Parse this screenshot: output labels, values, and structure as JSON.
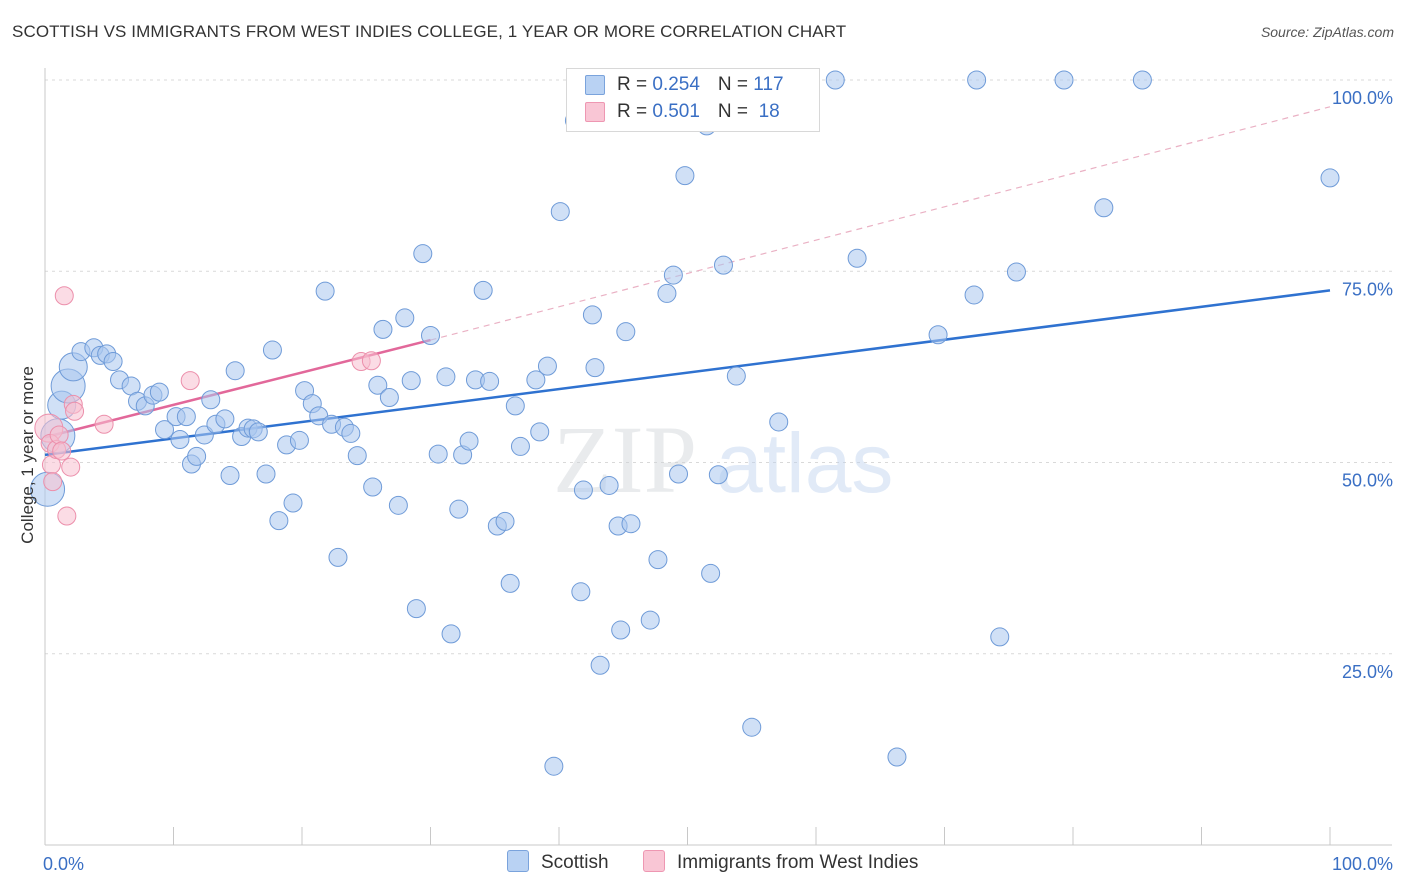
{
  "title": "SCOTTISH VS IMMIGRANTS FROM WEST INDIES COLLEGE, 1 YEAR OR MORE CORRELATION CHART",
  "source": "Source: ZipAtlas.com",
  "watermark": {
    "zip": "ZIP",
    "atlas": "atlas"
  },
  "legend": {
    "r_label": "R = ",
    "n_label": "N = ",
    "series": [
      {
        "name": "Scottish",
        "r": "0.254",
        "n": "117"
      },
      {
        "name": "Immigrants from West Indies",
        "r": "0.501",
        "n": " 18"
      }
    ]
  },
  "chart_data": {
    "type": "scatter",
    "title": "SCOTTISH VS IMMIGRANTS FROM WEST INDIES COLLEGE, 1 YEAR OR MORE CORRELATION CHART",
    "xlabel": "",
    "ylabel": "College, 1 year or more",
    "xlim": [
      0,
      100
    ],
    "ylim": [
      0,
      100
    ],
    "x_tick_labels": [
      "0.0%",
      "100.0%"
    ],
    "y_tick_labels": [
      {
        "value": 100,
        "label": "100.0%"
      },
      {
        "value": 75,
        "label": "75.0%"
      },
      {
        "value": 50,
        "label": "50.0%"
      },
      {
        "value": 25,
        "label": "25.0%"
      }
    ],
    "colors": {
      "Scottish": "#a9c6ef",
      "Scottish_edge": "#6f9bd8",
      "Scottish_line": "#2f72d0",
      "West Indies": "#f7bfd0",
      "West Indies_edge": "#ec8fab",
      "West Indies_line": "#e2689a"
    },
    "series": [
      {
        "name": "Scottish",
        "trend": {
          "x": [
            0,
            100
          ],
          "y": [
            51.0,
            72.5
          ]
        },
        "points": [
          [
            0.2,
            46.5,
            3
          ],
          [
            1,
            53.5,
            3
          ],
          [
            1.3,
            57.5,
            2
          ],
          [
            1.8,
            60,
            3
          ],
          [
            2.2,
            62.5,
            2
          ],
          [
            2.8,
            64.5,
            1
          ],
          [
            3.8,
            65,
            1
          ],
          [
            4.3,
            64,
            1
          ],
          [
            4.8,
            64.2,
            1
          ],
          [
            5.3,
            63.2,
            1
          ],
          [
            5.8,
            60.8,
            1
          ],
          [
            6.7,
            60,
            1
          ],
          [
            7.2,
            58,
            1
          ],
          [
            7.8,
            57.4,
            1
          ],
          [
            8.4,
            58.8,
            1
          ],
          [
            8.9,
            59.2,
            1
          ],
          [
            9.3,
            54.3,
            1
          ],
          [
            10.2,
            56,
            1
          ],
          [
            10.5,
            53,
            1
          ],
          [
            11,
            56,
            1
          ],
          [
            11.4,
            49.8,
            1
          ],
          [
            11.8,
            50.8,
            1
          ],
          [
            12.4,
            53.6,
            1
          ],
          [
            12.9,
            58.2,
            1
          ],
          [
            13.3,
            55,
            1
          ],
          [
            14.0,
            55.7,
            1
          ],
          [
            14.4,
            48.3,
            1
          ],
          [
            14.8,
            62,
            1
          ],
          [
            15.3,
            53.4,
            1
          ],
          [
            15.8,
            54.5,
            1
          ],
          [
            16.2,
            54.4,
            1
          ],
          [
            16.6,
            54,
            1
          ],
          [
            17.2,
            48.5,
            1
          ],
          [
            17.7,
            64.7,
            1
          ],
          [
            18.2,
            42.4,
            1
          ],
          [
            18.8,
            52.3,
            1
          ],
          [
            19.3,
            44.7,
            1
          ],
          [
            19.8,
            52.9,
            1
          ],
          [
            20.2,
            59.4,
            1
          ],
          [
            20.8,
            57.7,
            1
          ],
          [
            21.3,
            56.1,
            1
          ],
          [
            21.8,
            72.4,
            1
          ],
          [
            22.3,
            55,
            1
          ],
          [
            22.8,
            37.6,
            1
          ],
          [
            23.3,
            54.6,
            1
          ],
          [
            23.8,
            53.8,
            1
          ],
          [
            24.3,
            50.9,
            1
          ],
          [
            25.5,
            46.8,
            1
          ],
          [
            25.9,
            60.1,
            1
          ],
          [
            26.3,
            67.4,
            1
          ],
          [
            26.8,
            58.5,
            1
          ],
          [
            27.5,
            44.4,
            1
          ],
          [
            28,
            68.9,
            1
          ],
          [
            28.5,
            60.7,
            1
          ],
          [
            28.9,
            30.9,
            1
          ],
          [
            29.4,
            77.3,
            1
          ],
          [
            30,
            66.6,
            1
          ],
          [
            30.6,
            51.1,
            1
          ],
          [
            31.2,
            61.2,
            1
          ],
          [
            31.6,
            27.6,
            1
          ],
          [
            32.2,
            43.9,
            1
          ],
          [
            32.5,
            51,
            1
          ],
          [
            33.0,
            52.8,
            1
          ],
          [
            33.5,
            60.8,
            1
          ],
          [
            34.1,
            72.5,
            1
          ],
          [
            34.6,
            60.6,
            1
          ],
          [
            35.2,
            41.7,
            1
          ],
          [
            35.8,
            42.3,
            1
          ],
          [
            36.2,
            34.2,
            1
          ],
          [
            36.6,
            57.4,
            1
          ],
          [
            37.0,
            52.1,
            1
          ],
          [
            38.2,
            60.8,
            1
          ],
          [
            38.5,
            54,
            1
          ],
          [
            39.1,
            62.6,
            1
          ],
          [
            39.6,
            10.3,
            1
          ],
          [
            40.1,
            82.8,
            1
          ],
          [
            41.2,
            94.7,
            1
          ],
          [
            41.9,
            46.4,
            1
          ],
          [
            41.7,
            33.1,
            1
          ],
          [
            42.6,
            69.3,
            1
          ],
          [
            42.8,
            62.4,
            1
          ],
          [
            43.2,
            23.5,
            1
          ],
          [
            43.9,
            47,
            1
          ],
          [
            44.6,
            41.7,
            1
          ],
          [
            44.8,
            28.1,
            1
          ],
          [
            45.2,
            67.1,
            1
          ],
          [
            45.6,
            42,
            1
          ],
          [
            47.1,
            29.4,
            1
          ],
          [
            47.7,
            37.3,
            1
          ],
          [
            48.4,
            72.1,
            1
          ],
          [
            48.9,
            74.5,
            1
          ],
          [
            49.3,
            48.5,
            1
          ],
          [
            49.8,
            87.5,
            1
          ],
          [
            51.8,
            35.5,
            1
          ],
          [
            51.5,
            94,
            1
          ],
          [
            52.4,
            48.4,
            1
          ],
          [
            52.8,
            75.8,
            1
          ],
          [
            53.8,
            61.3,
            1
          ],
          [
            55,
            15.4,
            1
          ],
          [
            57.1,
            55.3,
            1
          ],
          [
            58.4,
            99.9,
            1
          ],
          [
            59,
            100,
            1
          ],
          [
            61.5,
            100,
            1
          ],
          [
            63.2,
            76.7,
            1
          ],
          [
            66.3,
            11.5,
            1
          ],
          [
            69.5,
            66.7,
            1
          ],
          [
            72.3,
            71.9,
            1
          ],
          [
            72.5,
            100,
            1
          ],
          [
            74.3,
            27.2,
            1
          ],
          [
            75.6,
            74.9,
            1
          ],
          [
            79.3,
            100,
            1
          ],
          [
            82.4,
            83.3,
            1
          ],
          [
            85.4,
            100,
            1
          ],
          [
            100,
            87.2,
            1
          ]
        ]
      },
      {
        "name": "Immigrants from West Indies",
        "trend": {
          "x": [
            0,
            30
          ],
          "y": [
            53.3,
            66.0
          ],
          "dashed_extension": {
            "x": [
              30,
              100
            ],
            "y": [
              66.0,
              96.5
            ]
          }
        },
        "points": [
          [
            0.3,
            54.5,
            2
          ],
          [
            0.4,
            52.5,
            1
          ],
          [
            0.5,
            49.7,
            1
          ],
          [
            0.6,
            47.5,
            1
          ],
          [
            0.9,
            51.7,
            1
          ],
          [
            1.1,
            53.6,
            1
          ],
          [
            1.3,
            51.5,
            1
          ],
          [
            1.5,
            71.8,
            1
          ],
          [
            1.7,
            43,
            1
          ],
          [
            2.0,
            49.4,
            1
          ],
          [
            2.2,
            57.6,
            1
          ],
          [
            2.3,
            56.7,
            1
          ],
          [
            4.6,
            55,
            1
          ],
          [
            11.3,
            60.7,
            1
          ],
          [
            24.6,
            63.2,
            1
          ],
          [
            25.4,
            63.3,
            1
          ]
        ]
      }
    ]
  },
  "bottom_legend": [
    "Scottish",
    "Immigrants from West Indies"
  ]
}
